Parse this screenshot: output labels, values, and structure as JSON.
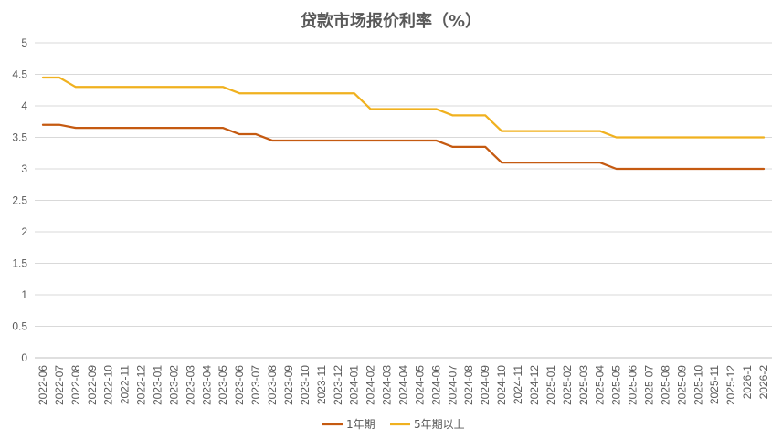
{
  "chart_data": {
    "type": "line",
    "title": "贷款市场报价利率（%）",
    "xlabel": "",
    "ylabel": "",
    "ylim": [
      0,
      5
    ],
    "yticks": [
      0,
      0.5,
      1,
      1.5,
      2,
      2.5,
      3,
      3.5,
      4,
      4.5,
      5
    ],
    "grid": true,
    "legend_position": "bottom",
    "categories": [
      "2022-06",
      "2022-07",
      "2022-08",
      "2022-09",
      "2022-10",
      "2022-11",
      "2022-12",
      "2023-01",
      "2023-02",
      "2023-03",
      "2023-04",
      "2023-05",
      "2023-06",
      "2023-07",
      "2023-08",
      "2023-09",
      "2023-10",
      "2023-11",
      "2023-12",
      "2024-01",
      "2024-02",
      "2024-03",
      "2024-04",
      "2024-05",
      "2024-06",
      "2024-07",
      "2024-08",
      "2024-09",
      "2024-10",
      "2024-11",
      "2024-12",
      "2025-01",
      "2025-02",
      "2025-03",
      "2025-04",
      "2025-05",
      "2025-06",
      "2025-07",
      "2025-08",
      "2025-09",
      "2025-10",
      "2025-11",
      "2025-12",
      "2026-1",
      "2026-2"
    ],
    "series": [
      {
        "name": "1年期",
        "color": "#C55A11",
        "values": [
          3.7,
          3.7,
          3.65,
          3.65,
          3.65,
          3.65,
          3.65,
          3.65,
          3.65,
          3.65,
          3.65,
          3.65,
          3.55,
          3.55,
          3.45,
          3.45,
          3.45,
          3.45,
          3.45,
          3.45,
          3.45,
          3.45,
          3.45,
          3.45,
          3.45,
          3.35,
          3.35,
          3.35,
          3.1,
          3.1,
          3.1,
          3.1,
          3.1,
          3.1,
          3.1,
          3.0,
          3.0,
          3.0,
          3.0,
          3.0,
          3.0,
          3.0,
          3.0,
          3.0,
          3.0
        ]
      },
      {
        "name": "5年期以上",
        "color": "#F0B11F",
        "values": [
          4.45,
          4.45,
          4.3,
          4.3,
          4.3,
          4.3,
          4.3,
          4.3,
          4.3,
          4.3,
          4.3,
          4.3,
          4.2,
          4.2,
          4.2,
          4.2,
          4.2,
          4.2,
          4.2,
          4.2,
          3.95,
          3.95,
          3.95,
          3.95,
          3.95,
          3.85,
          3.85,
          3.85,
          3.6,
          3.6,
          3.6,
          3.6,
          3.6,
          3.6,
          3.6,
          3.5,
          3.5,
          3.5,
          3.5,
          3.5,
          3.5,
          3.5,
          3.5,
          3.5,
          3.5
        ]
      }
    ]
  }
}
